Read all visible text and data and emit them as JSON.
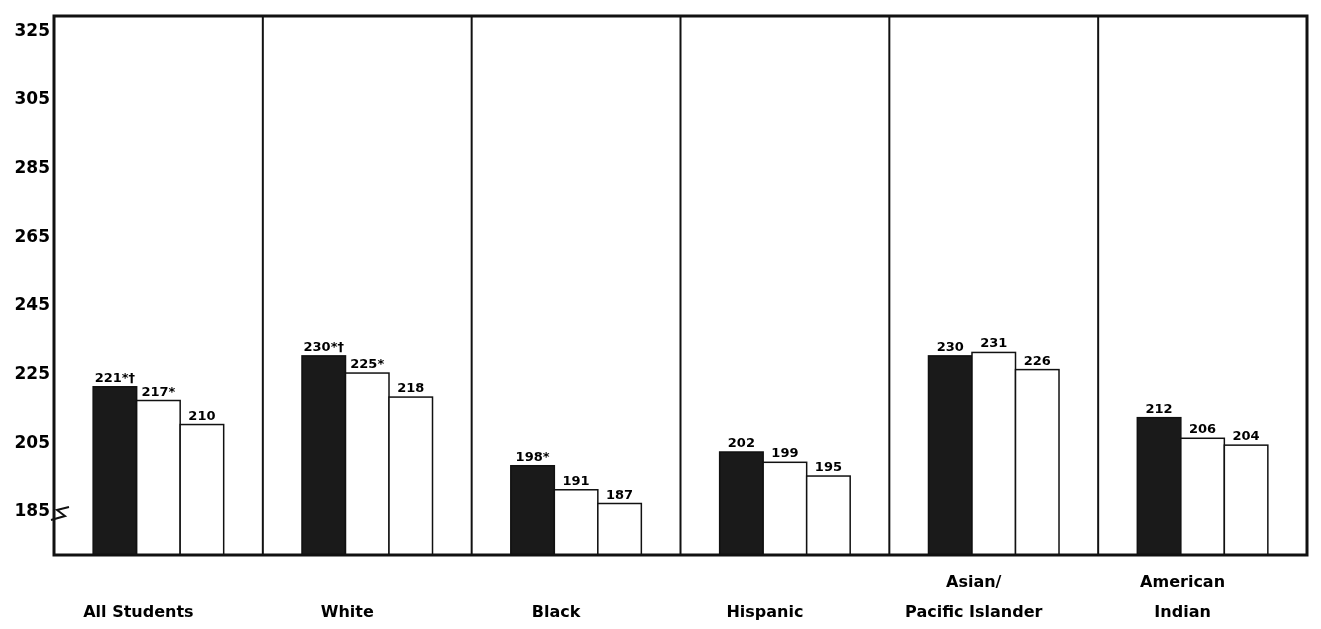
{
  "chart_data": {
    "type": "bar",
    "categories": [
      "All Students",
      "White",
      "Black",
      "Hispanic",
      "Asian/Pacific Islander",
      "American Indian"
    ],
    "series": [
      {
        "color": "#1a1a1a",
        "values": [
          221,
          230,
          198,
          202,
          230,
          212
        ],
        "value_labels": [
          "221*†",
          "230*†",
          "198*",
          "202",
          "230",
          "212"
        ]
      },
      {
        "color": "#ffffff",
        "values": [
          217,
          225,
          191,
          199,
          231,
          206
        ],
        "value_labels": [
          "217*",
          "225*",
          "191",
          "199",
          "231",
          "206"
        ]
      },
      {
        "color": "#ffffff",
        "values": [
          210,
          218,
          187,
          195,
          226,
          204
        ],
        "value_labels": [
          "210",
          "218",
          "187",
          "195",
          "226",
          "204"
        ]
      }
    ],
    "ylim": [
      172,
      329
    ],
    "yticks": [
      185,
      205,
      225,
      245,
      265,
      285,
      305,
      325
    ],
    "grid": false
  }
}
